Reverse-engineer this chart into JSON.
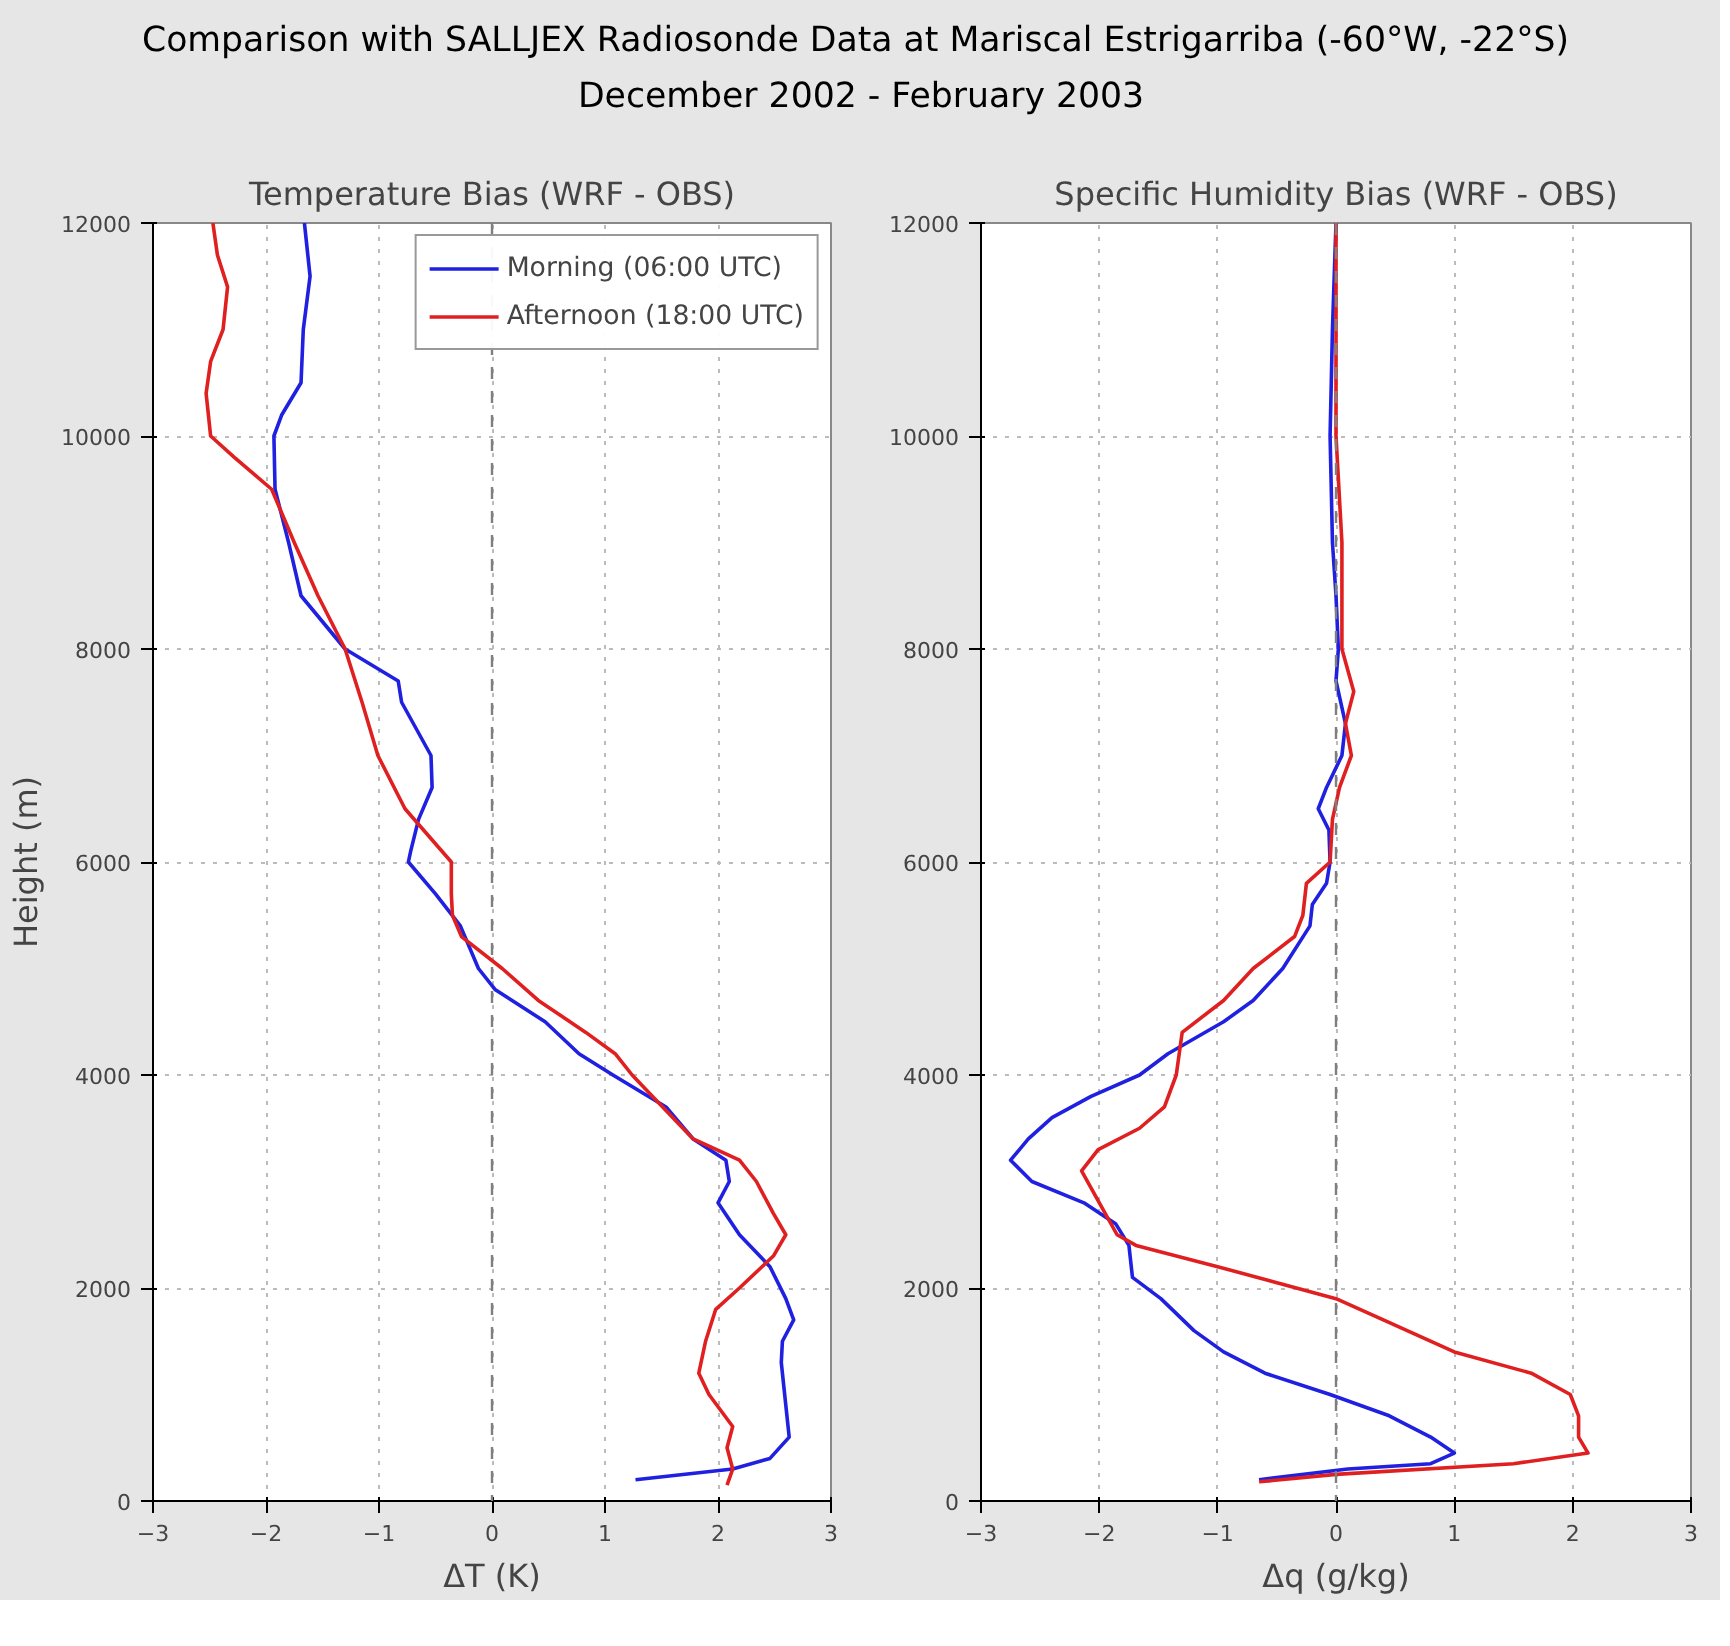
{
  "chart_data": [
    {
      "type": "line",
      "title": "Temperature Bias (WRF - OBS)",
      "xlabel": "ΔT (K)",
      "ylabel": "Height (m)",
      "annotations": [
        "Comparison with SALLJEX Radiosonde Data at Mariscal Estrigarriba  (-60°W, -22°S)",
        "December 2002 - February 2003"
      ],
      "xlim": [
        -3,
        3
      ],
      "ylim": [
        0,
        12000
      ],
      "xticks": [
        -3,
        -2,
        -1,
        0,
        1,
        2,
        3
      ],
      "yticks": [
        0,
        2000,
        4000,
        6000,
        8000,
        10000,
        12000
      ],
      "grid": true,
      "legend": "top right",
      "line_style": "solid",
      "ref_lines": [
        {
          "axis": "x",
          "value": 0,
          "color": "#7f7f7f",
          "line_style": "dashed"
        }
      ],
      "series": [
        {
          "name": "Morning (06:00 UTC)",
          "color": "#2020e0",
          "x": [
            -1.66,
            -1.61,
            -1.67,
            -1.69,
            -1.86,
            -1.93,
            -1.92,
            -1.8,
            -1.69,
            -1.3,
            -0.83,
            -0.8,
            -0.54,
            -0.53,
            -0.65,
            -0.72,
            -0.74,
            -0.5,
            -0.28,
            -0.12,
            0.03,
            0.47,
            0.77,
            1.07,
            1.54,
            1.78,
            2.07,
            2.1,
            2.0,
            2.19,
            2.46,
            2.6,
            2.67,
            2.57,
            2.56,
            2.59,
            2.63,
            2.46,
            2.13,
            1.27
          ],
          "values": [
            12000,
            11500,
            11000,
            10500,
            10200,
            10000,
            9500,
            9000,
            8500,
            8000,
            7700,
            7500,
            7000,
            6700,
            6400,
            6100,
            6000,
            5700,
            5400,
            5000,
            4800,
            4500,
            4200,
            4000,
            3700,
            3400,
            3200,
            3000,
            2800,
            2500,
            2200,
            1900,
            1700,
            1500,
            1300,
            1000,
            600,
            400,
            300,
            200
          ]
        },
        {
          "name": "Afternoon (18:00 UTC)",
          "color": "#e02020",
          "x": [
            -2.47,
            -2.43,
            -2.34,
            -2.38,
            -2.49,
            -2.53,
            -2.49,
            -2.28,
            -1.95,
            -1.75,
            -1.54,
            -1.3,
            -1.15,
            -1.01,
            -0.77,
            -0.36,
            -0.36,
            -0.35,
            -0.27,
            0.09,
            0.41,
            0.83,
            1.09,
            1.24,
            1.51,
            1.78,
            2.19,
            2.34,
            2.49,
            2.6,
            2.49,
            2.19,
            1.98,
            1.89,
            1.83,
            1.92,
            2.13,
            2.08,
            2.13,
            2.08
          ],
          "values": [
            12000,
            11700,
            11400,
            11000,
            10700,
            10400,
            10000,
            9800,
            9500,
            9000,
            8500,
            8000,
            7500,
            7000,
            6500,
            6000,
            5700,
            5500,
            5300,
            5000,
            4700,
            4400,
            4200,
            4000,
            3700,
            3400,
            3200,
            3000,
            2700,
            2500,
            2300,
            2000,
            1800,
            1500,
            1200,
            1000,
            700,
            500,
            300,
            150
          ]
        }
      ]
    },
    {
      "type": "line",
      "title": "Specific Humidity Bias (WRF - OBS)",
      "xlabel": "Δq (g/kg)",
      "xlim": [
        -3,
        3
      ],
      "ylim": [
        0,
        12000
      ],
      "xticks": [
        -3,
        -2,
        -1,
        0,
        1,
        2,
        3
      ],
      "yticks": [
        0,
        2000,
        4000,
        6000,
        8000,
        10000,
        12000
      ],
      "grid": true,
      "line_style": "solid",
      "ref_lines": [
        {
          "axis": "x",
          "value": 0,
          "color": "#7f7f7f",
          "line_style": "dashed"
        }
      ],
      "series": [
        {
          "color": "#2020e0",
          "x": [
            0,
            -0.03,
            -0.05,
            -0.03,
            0.0,
            0.02,
            0.0,
            0.08,
            0.05,
            -0.08,
            -0.15,
            -0.06,
            -0.05,
            -0.08,
            -0.2,
            -0.22,
            -0.45,
            -0.7,
            -0.95,
            -1.42,
            -1.66,
            -2.07,
            -2.4,
            -2.6,
            -2.75,
            -2.57,
            -2.13,
            -1.86,
            -1.75,
            -1.72,
            -1.48,
            -1.2,
            -0.95,
            -0.6,
            -0.05,
            0.45,
            0.8,
            1.0,
            0.8,
            0.1,
            -0.65
          ],
          "values": [
            12000,
            11000,
            10000,
            9000,
            8500,
            8000,
            7700,
            7300,
            7000,
            6700,
            6500,
            6300,
            6000,
            5800,
            5600,
            5400,
            5000,
            4700,
            4500,
            4200,
            4000,
            3800,
            3600,
            3400,
            3200,
            3000,
            2800,
            2600,
            2400,
            2100,
            1900,
            1600,
            1400,
            1200,
            1000,
            800,
            600,
            450,
            350,
            300,
            200
          ]
        },
        {
          "color": "#e02020",
          "x": [
            0.0,
            0.0,
            0.05,
            0.05,
            0.15,
            0.08,
            0.13,
            0.03,
            -0.03,
            -0.05,
            -0.25,
            -0.28,
            -0.35,
            -0.7,
            -0.95,
            -1.3,
            -1.35,
            -1.45,
            -1.66,
            -2.01,
            -2.15,
            -2.0,
            -1.85,
            -1.69,
            -1.0,
            0.0,
            0.4,
            1.0,
            1.65,
            1.98,
            2.05,
            2.05,
            2.13,
            1.5,
            0.0,
            -0.65
          ],
          "values": [
            12000,
            10000,
            9000,
            8000,
            7600,
            7300,
            7000,
            6700,
            6400,
            6000,
            5800,
            5500,
            5300,
            5000,
            4700,
            4400,
            4000,
            3700,
            3500,
            3300,
            3100,
            2800,
            2500,
            2400,
            2200,
            1900,
            1700,
            1400,
            1200,
            1000,
            800,
            600,
            450,
            350,
            250,
            180
          ]
        }
      ]
    }
  ]
}
